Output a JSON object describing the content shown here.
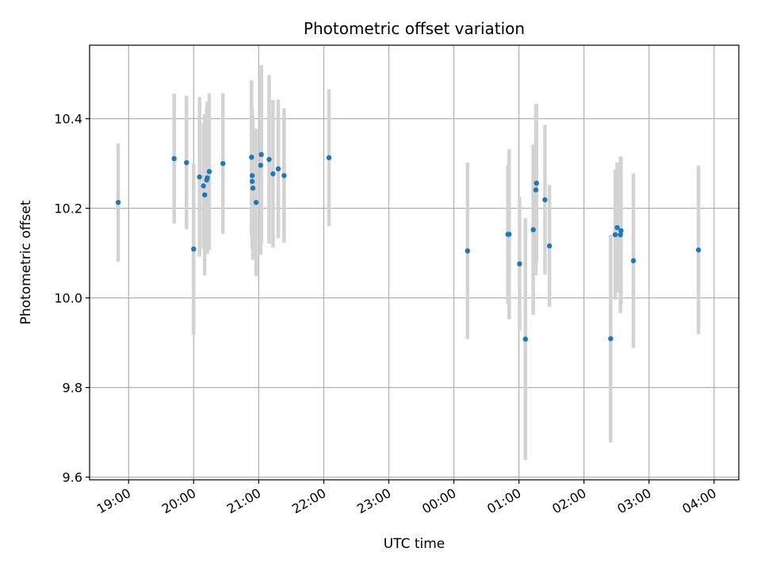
{
  "chart_data": {
    "type": "scatter",
    "title": "Photometric offset variation",
    "xlabel": "UTC time",
    "ylabel": "Photometric offset",
    "x_unit": "UTC time (hours, continuing past midnight)",
    "x_ticks": [
      {
        "value": 19,
        "label": "19:00"
      },
      {
        "value": 20,
        "label": "20:00"
      },
      {
        "value": 21,
        "label": "21:00"
      },
      {
        "value": 22,
        "label": "22:00"
      },
      {
        "value": 23,
        "label": "23:00"
      },
      {
        "value": 24,
        "label": "00:00"
      },
      {
        "value": 25,
        "label": "01:00"
      },
      {
        "value": 26,
        "label": "02:00"
      },
      {
        "value": 27,
        "label": "03:00"
      },
      {
        "value": 28,
        "label": "04:00"
      }
    ],
    "y_ticks": [
      {
        "value": 9.6,
        "label": "9.6"
      },
      {
        "value": 9.8,
        "label": "9.8"
      },
      {
        "value": 10.0,
        "label": "10.0"
      },
      {
        "value": 10.2,
        "label": "10.2"
      },
      {
        "value": 10.4,
        "label": "10.4"
      }
    ],
    "xlim": [
      18.4,
      28.38
    ],
    "ylim": [
      9.594,
      10.564
    ],
    "grid": true,
    "legend": "none",
    "colors": {
      "points": "#1f77b4",
      "errorbars": "#d3d3d3",
      "grid": "#b0b0b0"
    },
    "points": [
      {
        "x": 18.84,
        "y": 10.213,
        "err": 0.132
      },
      {
        "x": 19.7,
        "y": 10.311,
        "err": 0.145
      },
      {
        "x": 19.89,
        "y": 10.302,
        "err": 0.149
      },
      {
        "x": 20.0,
        "y": 10.109,
        "err": 0.191
      },
      {
        "x": 20.09,
        "y": 10.27,
        "err": 0.178
      },
      {
        "x": 20.15,
        "y": 10.25,
        "err": 0.14
      },
      {
        "x": 20.17,
        "y": 10.23,
        "err": 0.18
      },
      {
        "x": 20.2,
        "y": 10.263,
        "err": 0.16
      },
      {
        "x": 20.21,
        "y": 10.268,
        "err": 0.17
      },
      {
        "x": 20.24,
        "y": 10.282,
        "err": 0.175
      },
      {
        "x": 20.45,
        "y": 10.3,
        "err": 0.157
      },
      {
        "x": 20.89,
        "y": 10.314,
        "err": 0.172
      },
      {
        "x": 20.9,
        "y": 10.273,
        "err": 0.15
      },
      {
        "x": 20.9,
        "y": 10.26,
        "err": 0.15
      },
      {
        "x": 20.91,
        "y": 10.245,
        "err": 0.16
      },
      {
        "x": 20.96,
        "y": 10.213,
        "err": 0.165
      },
      {
        "x": 21.03,
        "y": 10.296,
        "err": 0.2
      },
      {
        "x": 21.04,
        "y": 10.32,
        "err": 0.2
      },
      {
        "x": 21.16,
        "y": 10.309,
        "err": 0.188
      },
      {
        "x": 21.22,
        "y": 10.277,
        "err": 0.165
      },
      {
        "x": 21.3,
        "y": 10.288,
        "err": 0.155
      },
      {
        "x": 21.39,
        "y": 10.273,
        "err": 0.15
      },
      {
        "x": 22.08,
        "y": 10.313,
        "err": 0.153
      },
      {
        "x": 24.21,
        "y": 10.105,
        "err": 0.197
      },
      {
        "x": 24.83,
        "y": 10.142,
        "err": 0.155
      },
      {
        "x": 24.85,
        "y": 10.142,
        "err": 0.19
      },
      {
        "x": 25.01,
        "y": 10.076,
        "err": 0.15
      },
      {
        "x": 25.1,
        "y": 9.908,
        "err": 0.27
      },
      {
        "x": 25.22,
        "y": 10.152,
        "err": 0.19
      },
      {
        "x": 25.26,
        "y": 10.241,
        "err": 0.19
      },
      {
        "x": 25.27,
        "y": 10.256,
        "err": 0.177
      },
      {
        "x": 25.4,
        "y": 10.219,
        "err": 0.167
      },
      {
        "x": 25.47,
        "y": 10.116,
        "err": 0.136
      },
      {
        "x": 26.41,
        "y": 9.909,
        "err": 0.232
      },
      {
        "x": 26.48,
        "y": 10.141,
        "err": 0.145
      },
      {
        "x": 26.51,
        "y": 10.157,
        "err": 0.145
      },
      {
        "x": 26.56,
        "y": 10.141,
        "err": 0.175
      },
      {
        "x": 26.57,
        "y": 10.15,
        "err": 0.165
      },
      {
        "x": 26.76,
        "y": 10.083,
        "err": 0.195
      },
      {
        "x": 27.76,
        "y": 10.107,
        "err": 0.188
      }
    ]
  }
}
